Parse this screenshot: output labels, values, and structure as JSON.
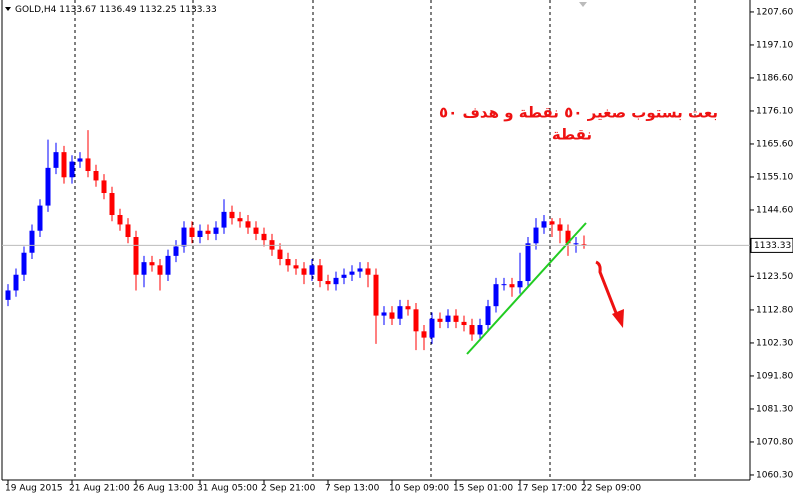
{
  "chart_data": {
    "type": "candlestick",
    "symbol": "GOLD,H4",
    "annotations": [
      "بعت بستوب صغير ٥٠ نقطة و هدف ٥٠",
      "نقطة"
    ],
    "categories": [
      "19 Aug 2015",
      null,
      null,
      null,
      null,
      null,
      null,
      null,
      "21 Aug 21:00",
      null,
      null,
      null,
      null,
      null,
      null,
      null,
      "26 Aug 13:00",
      null,
      null,
      null,
      null,
      null,
      null,
      null,
      "31 Aug 05:00",
      null,
      null,
      null,
      null,
      null,
      null,
      null,
      "2 Sep 21:00",
      null,
      null,
      null,
      null,
      null,
      null,
      null,
      "7 Sep 13:00",
      null,
      null,
      null,
      null,
      null,
      null,
      null,
      "10 Sep 09:00",
      null,
      null,
      null,
      null,
      null,
      null,
      null,
      "15 Sep 01:00",
      null,
      null,
      null,
      null,
      null,
      null,
      null,
      "17 Sep 17:00",
      null,
      null,
      null,
      null,
      null,
      null,
      null,
      "22 Sep 09:00"
    ],
    "open": [
      1116,
      1119,
      1124,
      1131,
      1138,
      1146,
      1158,
      1163,
      1155,
      1160,
      1161,
      1157,
      1154,
      1150,
      1143,
      1140,
      1136,
      1124,
      1128,
      1127,
      1124,
      1130,
      1133,
      1139,
      1136,
      1138,
      1137,
      1139,
      1144,
      1142,
      1141,
      1139,
      1137,
      1135,
      1132,
      1129,
      1127,
      1126,
      1124,
      1127,
      1122,
      1121,
      1123,
      1124,
      1125,
      1126,
      1124,
      1111,
      1112,
      1110,
      1114,
      1113,
      1106,
      1104,
      1110,
      1109,
      1111,
      1109,
      1108,
      1105,
      1108,
      1114,
      1121,
      1121,
      1120,
      1122,
      1134,
      1139,
      1141,
      1140,
      1138,
      1134,
      1133.67
    ],
    "high": [
      1121,
      1126,
      1133,
      1140,
      1148,
      1167,
      1166,
      1165,
      1162,
      1163,
      1170,
      1159,
      1156,
      1152,
      1145,
      1142,
      1138,
      1130,
      1130,
      1129,
      1132,
      1135,
      1141,
      1141,
      1140,
      1140,
      1141,
      1148,
      1146,
      1144,
      1143,
      1141,
      1139,
      1137,
      1134,
      1131,
      1129,
      1128,
      1129,
      1129,
      1124,
      1125,
      1126,
      1127,
      1128,
      1128,
      1126,
      1114,
      1114,
      1116,
      1116,
      1115,
      1108,
      1112,
      1112,
      1113,
      1113,
      1111,
      1110,
      1110,
      1116,
      1123,
      1123,
      1123,
      1131,
      1136,
      1142,
      1143,
      1142,
      1142,
      1140,
      1136,
      1136.49
    ],
    "low": [
      1114,
      1117,
      1122,
      1129,
      1136,
      1144,
      1156,
      1153,
      1153,
      1158,
      1155,
      1152,
      1148,
      1141,
      1138,
      1134,
      1119,
      1120,
      1125,
      1119,
      1122,
      1128,
      1131,
      1134,
      1134,
      1135,
      1135,
      1137,
      1140,
      1139,
      1137,
      1135,
      1133,
      1130,
      1127,
      1125,
      1124,
      1121,
      1122,
      1120,
      1119,
      1119,
      1121,
      1122,
      1123,
      1120,
      1102,
      1108,
      1108,
      1108,
      1111,
      1100,
      1100,
      1102,
      1107,
      1107,
      1107,
      1106,
      1103,
      1103,
      1106,
      1112,
      1119,
      1117,
      1118,
      1120,
      1132,
      1137,
      1136,
      1134,
      1130,
      1131,
      1132.25
    ],
    "close": [
      1119,
      1124,
      1131,
      1138,
      1146,
      1158,
      1163,
      1155,
      1160,
      1161,
      1157,
      1154,
      1150,
      1143,
      1140,
      1136,
      1124,
      1128,
      1127,
      1124,
      1130,
      1133,
      1139,
      1136,
      1138,
      1137,
      1139,
      1144,
      1142,
      1141,
      1139,
      1137,
      1135,
      1132,
      1129,
      1127,
      1126,
      1124,
      1127,
      1122,
      1121,
      1123,
      1124,
      1125,
      1126,
      1124,
      1111,
      1112,
      1110,
      1114,
      1113,
      1106,
      1104,
      1110,
      1109,
      1111,
      1109,
      1108,
      1105,
      1108,
      1114,
      1121,
      1121,
      1120,
      1122,
      1134,
      1139,
      1141,
      1140,
      1138,
      1134,
      1134,
      1133.33
    ],
    "ylim": [
      1058.7,
      1211.4
    ],
    "yticks": [
      {
        "value": 1207.6,
        "label": "1207.60"
      },
      {
        "value": 1197.1,
        "label": "1197.10"
      },
      {
        "value": 1186.6,
        "label": "1186.60"
      },
      {
        "value": 1176.1,
        "label": "1176.10"
      },
      {
        "value": 1165.6,
        "label": "1165.60"
      },
      {
        "value": 1155.1,
        "label": "1155.10"
      },
      {
        "value": 1144.6,
        "label": "1144.60"
      },
      {
        "value": 1123.5,
        "label": "1123.50"
      },
      {
        "value": 1112.8,
        "label": "1112.80"
      },
      {
        "value": 1102.3,
        "label": "1102.30"
      },
      {
        "value": 1091.8,
        "label": "1091.80"
      },
      {
        "value": 1081.3,
        "label": "1081.30"
      },
      {
        "value": 1070.8,
        "label": "1070.80"
      },
      {
        "value": 1060.3,
        "label": "1060.30"
      }
    ],
    "up_color": "#0000ff",
    "down_color": "#ff0000"
  }
}
